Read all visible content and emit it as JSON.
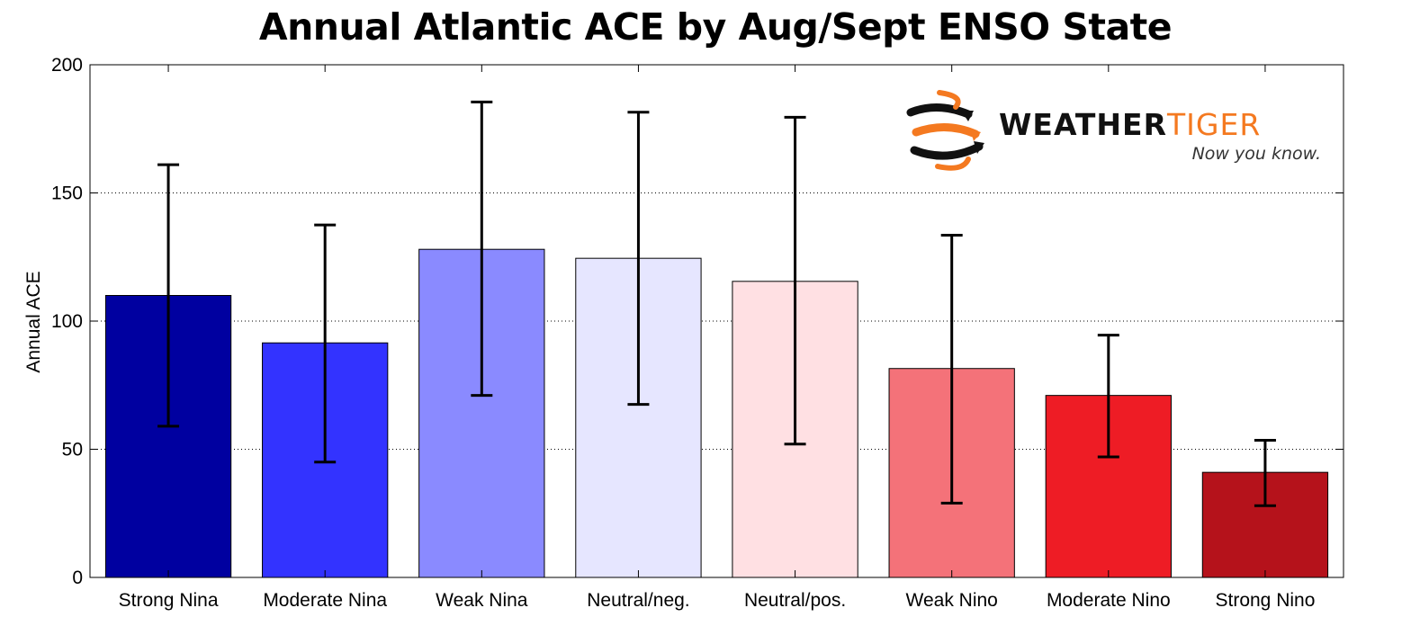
{
  "chart_data": {
    "type": "bar",
    "title": "Annual Atlantic ACE by Aug/Sept ENSO State",
    "xlabel": "",
    "ylabel": "Annual ACE",
    "ylim": [
      0,
      200
    ],
    "yticks": [
      0,
      50,
      100,
      150,
      200
    ],
    "grid": "horizontal dotted",
    "categories": [
      "Strong Nina",
      "Moderate Nina",
      "Weak Nina",
      "Neutral/neg.",
      "Neutral/pos.",
      "Weak Nino",
      "Moderate Nino",
      "Strong Nino"
    ],
    "values": [
      110,
      91.5,
      128,
      124.5,
      115.5,
      81.5,
      71,
      41
    ],
    "error_low": [
      59,
      45,
      71,
      67.5,
      52,
      29,
      47,
      28
    ],
    "error_high": [
      161,
      137.5,
      185.5,
      181.5,
      179.5,
      133.5,
      94.5,
      53.5
    ],
    "colors": [
      "#0000A0",
      "#3333FF",
      "#8A8AFF",
      "#E6E6FF",
      "#FFE0E3",
      "#F47279",
      "#EE1C25",
      "#B5121B"
    ]
  },
  "logo": {
    "brand_left": "WEATHER",
    "brand_right": "TIGER",
    "tagline": "Now you know.",
    "colors": {
      "dark": "#111111",
      "accent": "#F47920"
    }
  }
}
